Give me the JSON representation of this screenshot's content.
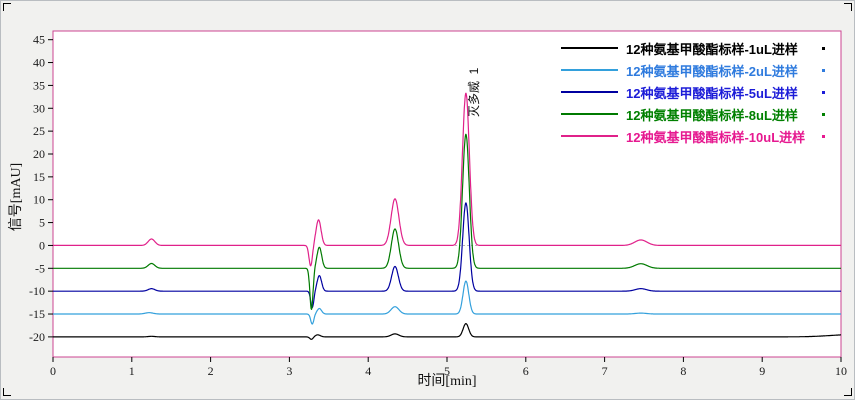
{
  "panel": {
    "background": "#f1f1ef",
    "plot_background": "#ffffff"
  },
  "chart_data": {
    "type": "line",
    "title": "",
    "xlabel": "时间[min]",
    "ylabel": "信号[mAU]",
    "xlim": [
      0,
      10
    ],
    "ylim": [
      -24.4,
      46.9
    ],
    "x_ticks": [
      0,
      1,
      2,
      3,
      4,
      5,
      6,
      7,
      8,
      9,
      10
    ],
    "y_ticks": [
      45,
      40,
      35,
      30,
      25,
      20,
      15,
      10,
      5,
      0,
      -5,
      -10,
      -15,
      -20
    ],
    "grid": false,
    "frame_color": "#cc4492",
    "legend_position": "top-right",
    "annotation": {
      "text": "灭多威  1",
      "peak_id": 1,
      "compound": "灭多威",
      "retention_time_min": 5.24
    },
    "integration_baseline": {
      "x_start": 4.95,
      "x_end": 5.62,
      "y": 0,
      "color": "#b3b3b3"
    },
    "series_note": "peaks are [retention_time_min, height_mAU_relative_to_baseline, width]; traces are offset-stacked by baseline",
    "series": [
      {
        "name": "12种氨基甲酸酯标样-1uL进样",
        "injection_volume": "1uL",
        "color": "#000000",
        "label_color": "#000000",
        "baseline": -20,
        "peaks": [
          [
            1.25,
            0.12,
            0.06
          ],
          [
            3.28,
            -0.55,
            0.03
          ],
          [
            3.36,
            0.45,
            0.045
          ],
          [
            4.34,
            0.65,
            0.07
          ],
          [
            5.24,
            2.9,
            0.05
          ],
          [
            10.15,
            0.5,
            0.4
          ]
        ]
      },
      {
        "name": "12种氨基甲酸酯标样-2uL进样",
        "injection_volume": "2uL",
        "color": "#33a0dc",
        "label_color": "#2f7bde",
        "baseline": -15,
        "peaks": [
          [
            1.22,
            0.3,
            0.07
          ],
          [
            3.29,
            -2.2,
            0.028
          ],
          [
            3.38,
            1.2,
            0.04
          ],
          [
            4.34,
            1.6,
            0.07
          ],
          [
            5.24,
            7.2,
            0.052
          ],
          [
            7.46,
            0.2,
            0.1
          ]
        ]
      },
      {
        "name": "12种氨基甲酸酯标样-5uL进样",
        "injection_volume": "5uL",
        "color": "#0000a0",
        "label_color": "#1c1cd8",
        "baseline": -10,
        "peaks": [
          [
            1.25,
            0.55,
            0.06
          ],
          [
            3.29,
            -3.6,
            0.028
          ],
          [
            3.38,
            3.4,
            0.04
          ],
          [
            4.34,
            5.4,
            0.06
          ],
          [
            5.24,
            19.3,
            0.058
          ],
          [
            7.46,
            0.55,
            0.1
          ]
        ]
      },
      {
        "name": "12种氨基甲酸酯标样-8uL进样",
        "injection_volume": "8uL",
        "color": "#007a00",
        "label_color": "#008000",
        "baseline": -5,
        "peaks": [
          [
            1.25,
            1.05,
            0.06
          ],
          [
            3.28,
            -9.0,
            0.028
          ],
          [
            3.38,
            4.6,
            0.042
          ],
          [
            4.34,
            8.6,
            0.065
          ],
          [
            5.24,
            29.3,
            0.06
          ],
          [
            7.46,
            1.0,
            0.11
          ]
        ]
      },
      {
        "name": "12种氨基甲酸酯标样-10uL进样",
        "injection_volume": "10uL",
        "color": "#e0218a",
        "label_color": "#e61990",
        "baseline": 0,
        "peaks": [
          [
            1.25,
            1.4,
            0.06
          ],
          [
            3.27,
            -4.5,
            0.03
          ],
          [
            3.37,
            5.6,
            0.045
          ],
          [
            4.34,
            10.2,
            0.07
          ],
          [
            5.24,
            33.3,
            0.062
          ],
          [
            7.46,
            1.2,
            0.11
          ]
        ]
      }
    ]
  }
}
